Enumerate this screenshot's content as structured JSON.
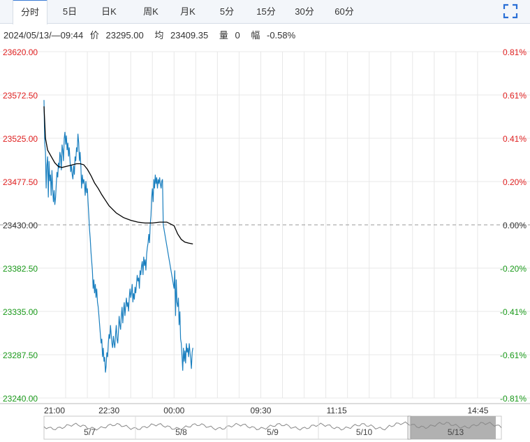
{
  "tabs": [
    {
      "label": "分时",
      "active": true
    },
    {
      "label": "5日",
      "active": false
    },
    {
      "label": "日K",
      "active": false
    },
    {
      "label": "周K",
      "active": false
    },
    {
      "label": "月K",
      "active": false
    },
    {
      "label": "5分",
      "active": false
    },
    {
      "label": "15分",
      "active": false
    },
    {
      "label": "30分",
      "active": false
    },
    {
      "label": "60分",
      "active": false
    }
  ],
  "fullscreen_icon": "expand-corners-icon",
  "info": {
    "datetime": "2024/05/13/—09:44",
    "price_label": "价",
    "price": "23295.00",
    "avg_label": "均",
    "avg": "23409.35",
    "volume_label": "量",
    "volume": "0",
    "change_label": "幅",
    "change": "-0.58%"
  },
  "colors": {
    "price_line": "#1a7fbf",
    "avg_line": "#000000",
    "up": "#e02020",
    "down": "#1a9a1a",
    "grid": "#e8e8e8",
    "baseline": "#999999"
  },
  "chart_data": {
    "type": "line",
    "prev_close": 23430.0,
    "ylim": [
      23240.0,
      23620.0
    ],
    "y_ticks": [
      "23620.00",
      "23572.50",
      "23525.00",
      "23477.50",
      "23430.00",
      "23382.50",
      "23335.00",
      "23287.50",
      "23240.00"
    ],
    "pct_ticks": [
      "0.81%",
      "0.61%",
      "0.41%",
      "0.20%",
      "0.00%",
      "-0.20%",
      "-0.41%",
      "-0.61%",
      "-0.81%"
    ],
    "x_ticks": [
      "21:00",
      "22:30",
      "00:00",
      "09:30",
      "11:15",
      "14:45"
    ],
    "x_tick_minutes": [
      0,
      90,
      180,
      300,
      405,
      615
    ],
    "x_total_minutes": 630,
    "price_series": [
      [
        0,
        23567
      ],
      [
        1,
        23520
      ],
      [
        2,
        23510
      ],
      [
        3,
        23470
      ],
      [
        4,
        23495
      ],
      [
        5,
        23505
      ],
      [
        6,
        23460
      ],
      [
        7,
        23500
      ],
      [
        8,
        23478
      ],
      [
        9,
        23485
      ],
      [
        10,
        23462
      ],
      [
        11,
        23490
      ],
      [
        12,
        23470
      ],
      [
        13,
        23455
      ],
      [
        14,
        23468
      ],
      [
        15,
        23452
      ],
      [
        16,
        23460
      ],
      [
        17,
        23475
      ],
      [
        18,
        23488
      ],
      [
        19,
        23482
      ],
      [
        20,
        23498
      ],
      [
        21,
        23492
      ],
      [
        22,
        23510
      ],
      [
        23,
        23505
      ],
      [
        24,
        23490
      ],
      [
        25,
        23518
      ],
      [
        26,
        23512
      ],
      [
        27,
        23500
      ],
      [
        28,
        23525
      ],
      [
        29,
        23532
      ],
      [
        30,
        23518
      ],
      [
        31,
        23528
      ],
      [
        32,
        23512
      ],
      [
        33,
        23520
      ],
      [
        34,
        23505
      ],
      [
        35,
        23515
      ],
      [
        36,
        23500
      ],
      [
        37,
        23488
      ],
      [
        38,
        23495
      ],
      [
        39,
        23485
      ],
      [
        40,
        23480
      ],
      [
        41,
        23495
      ],
      [
        42,
        23485
      ],
      [
        43,
        23505
      ],
      [
        44,
        23500
      ],
      [
        45,
        23515
      ],
      [
        46,
        23510
      ],
      [
        47,
        23530
      ],
      [
        48,
        23520
      ],
      [
        49,
        23500
      ],
      [
        50,
        23510
      ],
      [
        51,
        23495
      ],
      [
        52,
        23470
      ],
      [
        53,
        23485
      ],
      [
        54,
        23475
      ],
      [
        55,
        23480
      ],
      [
        56,
        23475
      ],
      [
        57,
        23462
      ],
      [
        58,
        23478
      ],
      [
        59,
        23465
      ],
      [
        60,
        23470
      ],
      [
        61,
        23455
      ],
      [
        62,
        23440
      ],
      [
        63,
        23425
      ],
      [
        64,
        23415
      ],
      [
        65,
        23400
      ],
      [
        66,
        23390
      ],
      [
        67,
        23380
      ],
      [
        68,
        23360
      ],
      [
        69,
        23370
      ],
      [
        70,
        23355
      ],
      [
        71,
        23365
      ],
      [
        72,
        23350
      ],
      [
        73,
        23360
      ],
      [
        74,
        23345
      ],
      [
        75,
        23340
      ],
      [
        76,
        23330
      ],
      [
        77,
        23320
      ],
      [
        78,
        23310
      ],
      [
        79,
        23300
      ],
      [
        80,
        23305
      ],
      [
        81,
        23285
      ],
      [
        82,
        23295
      ],
      [
        83,
        23280
      ],
      [
        84,
        23285
      ],
      [
        85,
        23268
      ],
      [
        86,
        23275
      ],
      [
        87,
        23290
      ],
      [
        88,
        23285
      ],
      [
        89,
        23300
      ],
      [
        90,
        23310
      ],
      [
        91,
        23305
      ],
      [
        92,
        23320
      ],
      [
        93,
        23310
      ],
      [
        94,
        23300
      ],
      [
        95,
        23295
      ],
      [
        96,
        23308
      ],
      [
        97,
        23300
      ],
      [
        98,
        23295
      ],
      [
        99,
        23310
      ],
      [
        100,
        23320
      ],
      [
        101,
        23305
      ],
      [
        102,
        23300
      ],
      [
        103,
        23312
      ],
      [
        104,
        23330
      ],
      [
        105,
        23320
      ],
      [
        106,
        23315
      ],
      [
        107,
        23330
      ],
      [
        108,
        23340
      ],
      [
        109,
        23322
      ],
      [
        110,
        23335
      ],
      [
        111,
        23345
      ],
      [
        112,
        23330
      ],
      [
        113,
        23340
      ],
      [
        114,
        23350
      ],
      [
        115,
        23340
      ],
      [
        116,
        23345
      ],
      [
        117,
        23335
      ],
      [
        118,
        23350
      ],
      [
        119,
        23360
      ],
      [
        120,
        23350
      ],
      [
        121,
        23355
      ],
      [
        122,
        23365
      ],
      [
        123,
        23345
      ],
      [
        124,
        23355
      ],
      [
        125,
        23348
      ],
      [
        126,
        23362
      ],
      [
        127,
        23355
      ],
      [
        128,
        23365
      ],
      [
        129,
        23375
      ],
      [
        130,
        23368
      ],
      [
        131,
        23372
      ],
      [
        132,
        23360
      ],
      [
        133,
        23380
      ],
      [
        134,
        23375
      ],
      [
        135,
        23385
      ],
      [
        136,
        23390
      ],
      [
        137,
        23375
      ],
      [
        138,
        23395
      ],
      [
        139,
        23385
      ],
      [
        140,
        23392
      ],
      [
        141,
        23380
      ],
      [
        142,
        23398
      ],
      [
        143,
        23405
      ],
      [
        144,
        23410
      ],
      [
        145,
        23420
      ],
      [
        146,
        23410
      ],
      [
        147,
        23430
      ],
      [
        148,
        23440
      ],
      [
        149,
        23460
      ],
      [
        150,
        23470
      ],
      [
        151,
        23455
      ],
      [
        152,
        23480
      ],
      [
        153,
        23470
      ],
      [
        154,
        23485
      ],
      [
        155,
        23475
      ],
      [
        156,
        23482
      ],
      [
        157,
        23470
      ],
      [
        158,
        23480
      ],
      [
        159,
        23475
      ],
      [
        160,
        23482
      ],
      [
        161,
        23475
      ],
      [
        162,
        23470
      ],
      [
        163,
        23478
      ],
      [
        164,
        23480
      ],
      [
        165,
        23430
      ],
      [
        180,
        23360
      ],
      [
        181,
        23380
      ],
      [
        182,
        23330
      ],
      [
        183,
        23370
      ],
      [
        184,
        23345
      ],
      [
        185,
        23340
      ],
      [
        186,
        23350
      ],
      [
        187,
        23320
      ],
      [
        188,
        23335
      ],
      [
        189,
        23305
      ],
      [
        190,
        23300
      ],
      [
        191,
        23285
      ],
      [
        192,
        23270
      ],
      [
        193,
        23295
      ],
      [
        194,
        23280
      ],
      [
        195,
        23292
      ],
      [
        196,
        23278
      ],
      [
        197,
        23300
      ],
      [
        198,
        23290
      ],
      [
        199,
        23295
      ],
      [
        200,
        23285
      ],
      [
        201,
        23300
      ],
      [
        202,
        23290
      ],
      [
        203,
        23283
      ],
      [
        204,
        23272
      ],
      [
        205,
        23290
      ],
      [
        206,
        23295
      ]
    ],
    "avg_series": [
      [
        0,
        23560
      ],
      [
        2,
        23525
      ],
      [
        5,
        23512
      ],
      [
        10,
        23505
      ],
      [
        15,
        23498
      ],
      [
        20,
        23494
      ],
      [
        25,
        23493
      ],
      [
        30,
        23494
      ],
      [
        35,
        23495
      ],
      [
        40,
        23496
      ],
      [
        45,
        23497
      ],
      [
        50,
        23497
      ],
      [
        55,
        23496
      ],
      [
        60,
        23491
      ],
      [
        65,
        23484
      ],
      [
        70,
        23476
      ],
      [
        75,
        23470
      ],
      [
        80,
        23463
      ],
      [
        85,
        23457
      ],
      [
        90,
        23451
      ],
      [
        95,
        23447
      ],
      [
        100,
        23443
      ],
      [
        110,
        23438
      ],
      [
        120,
        23435
      ],
      [
        130,
        23433
      ],
      [
        140,
        23432
      ],
      [
        150,
        23432
      ],
      [
        160,
        23433
      ],
      [
        165,
        23433
      ],
      [
        170,
        23433
      ],
      [
        180,
        23429
      ],
      [
        185,
        23420
      ],
      [
        190,
        23414
      ],
      [
        195,
        23411
      ],
      [
        200,
        23410
      ],
      [
        206,
        23409
      ]
    ],
    "navigator": {
      "labels": [
        "5/7",
        "5/8",
        "5/9",
        "5/10",
        "5/13"
      ],
      "selected_label": "5/13"
    }
  }
}
